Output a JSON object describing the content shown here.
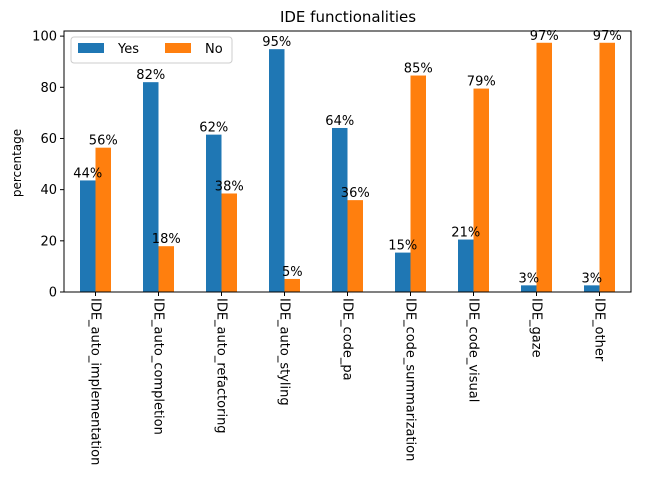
{
  "chart_data": {
    "type": "bar",
    "title": "IDE functionalities",
    "xlabel": "",
    "ylabel": "percentage",
    "ylim": [
      0,
      102
    ],
    "yticks": [
      0,
      20,
      40,
      60,
      80,
      100
    ],
    "grid": false,
    "legend_position": "top-left",
    "categories": [
      "IDE_auto_implementation",
      "IDE_auto_completion",
      "IDE_auto_refactoring",
      "IDE_auto_styling",
      "IDE_code_pa",
      "IDE_code_summarization",
      "IDE_code_visual",
      "IDE_gaze",
      "IDE_other"
    ],
    "series": [
      {
        "name": "Yes",
        "color": "#1f77b4",
        "values": [
          43.6,
          82.0,
          61.5,
          94.9,
          64.1,
          15.4,
          20.5,
          2.6,
          2.6
        ],
        "labels": [
          "44%",
          "82%",
          "62%",
          "95%",
          "64%",
          "15%",
          "21%",
          "3%",
          "3%"
        ]
      },
      {
        "name": "No",
        "color": "#ff7f0e",
        "values": [
          56.4,
          17.9,
          38.5,
          5.1,
          35.9,
          84.6,
          79.5,
          97.4,
          97.4
        ],
        "labels": [
          "56%",
          "18%",
          "38%",
          "5%",
          "36%",
          "85%",
          "79%",
          "97%",
          "97%"
        ]
      }
    ]
  }
}
